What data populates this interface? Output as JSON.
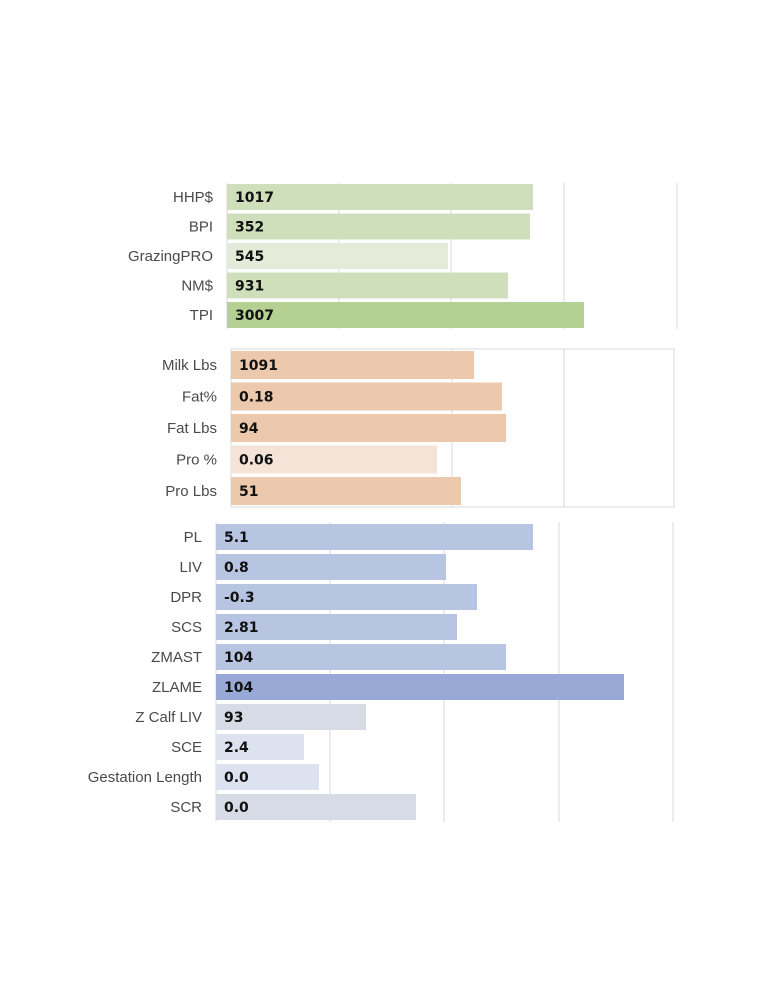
{
  "chart_data": [
    {
      "type": "bar",
      "orientation": "horizontal",
      "categories": [
        "HHP$",
        "BPI",
        "GrazingPRO",
        "NM$",
        "TPI"
      ],
      "values": [
        1017,
        352,
        545,
        931,
        3007
      ],
      "value_labels": [
        "1017",
        "352",
        "545",
        "931",
        "3007"
      ],
      "bar_colors": [
        "#cfdfbb",
        "#cfdfbb",
        "#e4ecd9",
        "#cfdfbb",
        "#b4d092"
      ],
      "grid": true
    },
    {
      "type": "bar",
      "orientation": "horizontal",
      "categories": [
        "Milk Lbs",
        "Fat%",
        "Fat Lbs",
        "Pro %",
        "Pro Lbs"
      ],
      "values": [
        1091,
        0.18,
        94,
        0.06,
        51
      ],
      "value_labels": [
        "1091",
        "0.18",
        "94",
        "0.06",
        "51"
      ],
      "bar_colors": [
        "#ecc9ad",
        "#ecc9ad",
        "#ecc9ad",
        "#f4e3d6",
        "#ecc9ad"
      ],
      "grid": true
    },
    {
      "type": "bar",
      "orientation": "horizontal",
      "categories": [
        "PL",
        "LIV",
        "DPR",
        "SCS",
        "ZMAST",
        "ZLAME",
        "Z Calf LIV",
        "SCE",
        "Gestation Length",
        "SCR"
      ],
      "values": [
        5.1,
        0.8,
        -0.3,
        2.81,
        104,
        104,
        93,
        2.4,
        0.0,
        0.0
      ],
      "value_labels": [
        "5.1",
        "0.8",
        "-0.3",
        "2.81",
        "104",
        "104",
        "93",
        "2.4",
        "0.0",
        "0.0"
      ],
      "bar_colors": [
        "#b7c5e3",
        "#b7c5e3",
        "#b7c5e3",
        "#b7c5e3",
        "#b7c5e3",
        "#97a9d4",
        "#d6dbe6",
        "#dde2f1",
        "#dde2f1",
        "#d6dbe6"
      ],
      "grid": true
    }
  ]
}
